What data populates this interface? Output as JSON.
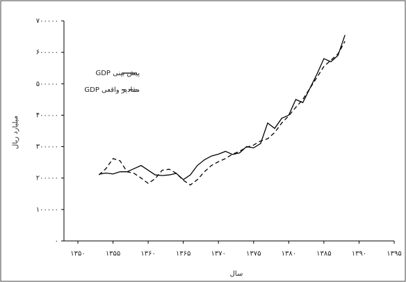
{
  "chart_data": {
    "type": "line",
    "x_label": "سال",
    "y_label": "میلیارد ریال",
    "x": [
      1353,
      1354,
      1355,
      1356,
      1357,
      1358,
      1359,
      1360,
      1361,
      1362,
      1363,
      1364,
      1365,
      1366,
      1367,
      1368,
      1369,
      1370,
      1371,
      1372,
      1373,
      1374,
      1375,
      1376,
      1377,
      1378,
      1379,
      1380,
      1381,
      1382,
      1383,
      1384,
      1385,
      1386,
      1387,
      1388
    ],
    "series": [
      {
        "name": "پیش بینی GDP",
        "color": "#000000",
        "dash": "solid",
        "values": [
          212000,
          216000,
          213000,
          220000,
          220000,
          230000,
          240000,
          225000,
          210000,
          208000,
          210000,
          215000,
          195000,
          210000,
          240000,
          258000,
          270000,
          276000,
          285000,
          275000,
          280000,
          300000,
          296000,
          310000,
          375000,
          358000,
          390000,
          400000,
          450000,
          440000,
          485000,
          530000,
          580000,
          570000,
          590000,
          655000
        ]
      },
      {
        "name": "مقادیر واقعی GDP",
        "color": "#000000",
        "dash": "dashed",
        "values": [
          210000,
          230000,
          262000,
          255000,
          220000,
          215000,
          200000,
          183000,
          198000,
          225000,
          228000,
          215000,
          193000,
          178000,
          195000,
          220000,
          240000,
          252000,
          262000,
          276000,
          285000,
          298000,
          305000,
          318000,
          325000,
          345000,
          375000,
          398000,
          425000,
          450000,
          485000,
          520000,
          555000,
          575000,
          595000,
          635000
        ]
      }
    ],
    "xlim": [
      1350,
      1395
    ],
    "xticks": [
      {
        "value": 1350,
        "label": "۱۳۵۰"
      },
      {
        "value": 1355,
        "label": "۱۳۵۵"
      },
      {
        "value": 1360,
        "label": "۱۳۶۰"
      },
      {
        "value": 1365,
        "label": "۱۳۶۵"
      },
      {
        "value": 1370,
        "label": "۱۳۷۰"
      },
      {
        "value": 1375,
        "label": "۱۳۷۵"
      },
      {
        "value": 1380,
        "label": "۱۳۸۰"
      },
      {
        "value": 1385,
        "label": "۱۳۸۵"
      },
      {
        "value": 1390,
        "label": "۱۳۹۰"
      },
      {
        "value": 1395,
        "label": "۱۳۹۵"
      }
    ],
    "ylim": [
      0,
      700000
    ],
    "yticks": [
      {
        "value": 0,
        "label": "۰"
      },
      {
        "value": 100000,
        "label": "۱۰۰۰۰۰"
      },
      {
        "value": 200000,
        "label": "۲۰۰۰۰۰"
      },
      {
        "value": 300000,
        "label": "۳۰۰۰۰۰"
      },
      {
        "value": 400000,
        "label": "۴۰۰۰۰۰"
      },
      {
        "value": 500000,
        "label": "۵۰۰۰۰۰"
      },
      {
        "value": 600000,
        "label": "۶۰۰۰۰۰"
      },
      {
        "value": 700000,
        "label": "۷۰۰۰۰۰"
      }
    ],
    "legend": "upper-left"
  }
}
